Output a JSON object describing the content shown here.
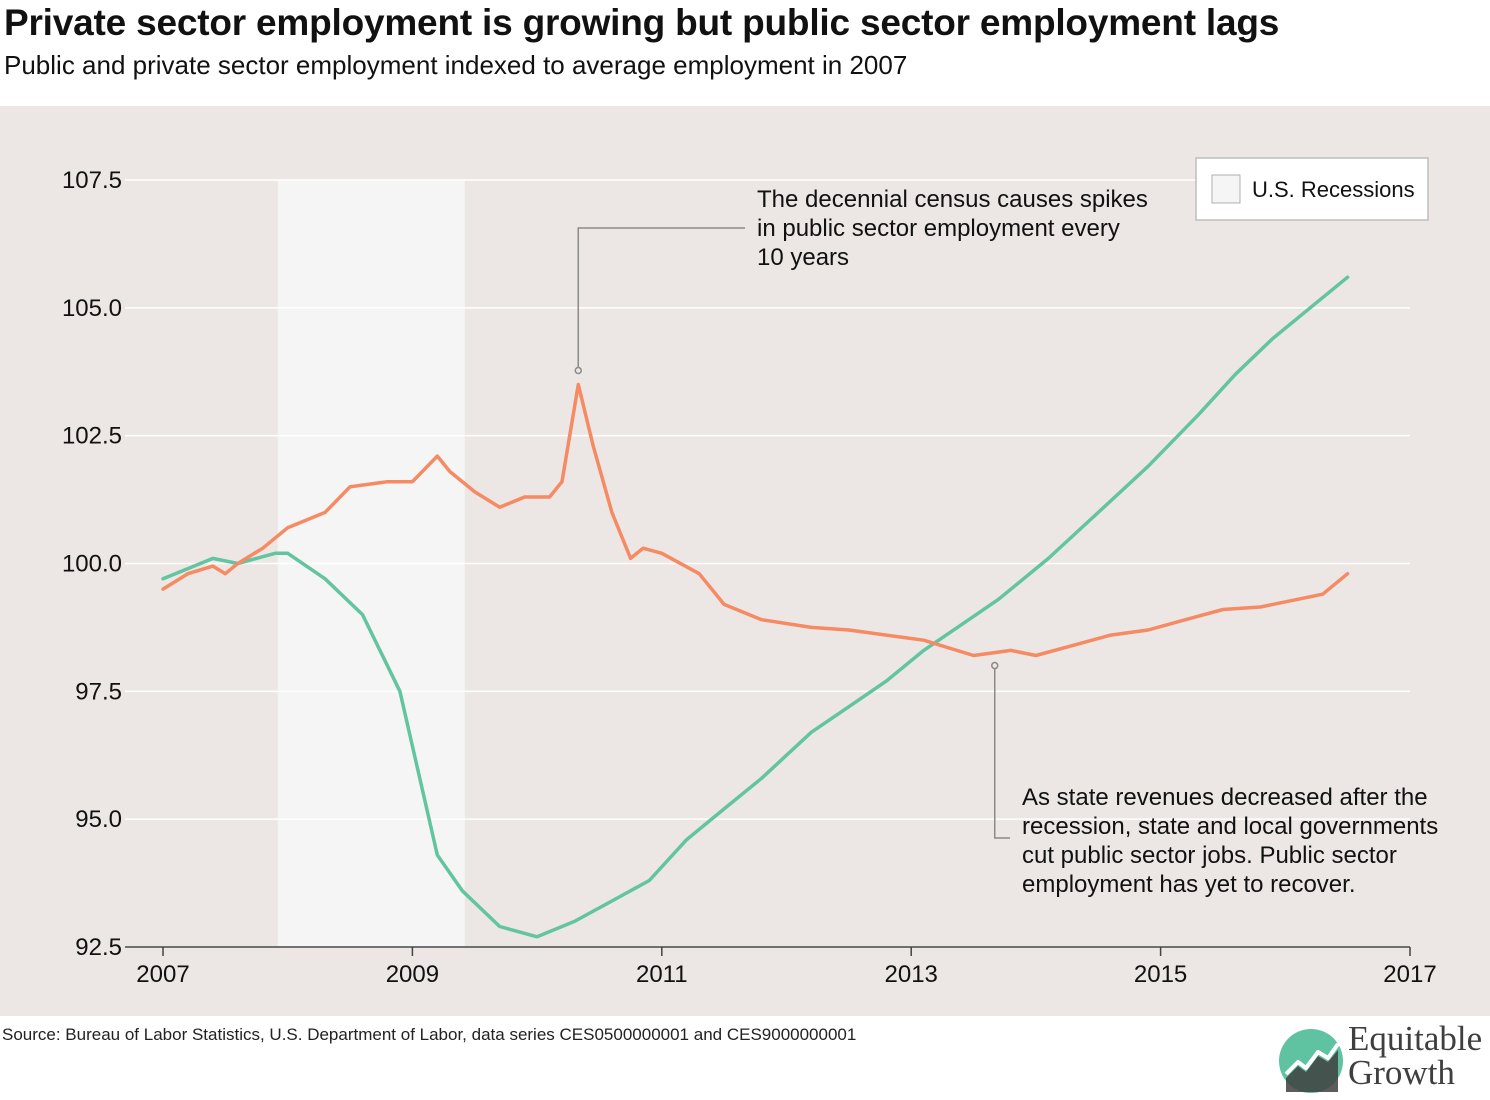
{
  "header": {
    "title": "Private sector employment is growing but public sector employment lags",
    "subtitle": "Public and private sector employment indexed to average employment in 2007"
  },
  "footer": {
    "source": "Source: Bureau of Labor Statistics, U.S. Department of Labor, data series CES0500000001 and CES9000000001"
  },
  "logo": {
    "line1": "Equitable",
    "line2": "Growth",
    "colors": {
      "teal": "#5fc2a0",
      "dark": "#3f3f3f"
    }
  },
  "legend": {
    "label": "U.S. Recessions"
  },
  "annotations": [
    {
      "lines": [
        "The decennial census causes spikes",
        "in public sector employment every",
        "10 years"
      ],
      "points_to": {
        "x": 2010.33,
        "y": 103.5
      }
    },
    {
      "lines": [
        "As state revenues decreased after the",
        "recession, state and local governments",
        "cut public sector jobs. Public sector",
        "employment has yet to recover."
      ],
      "points_to": {
        "x": 2013.67,
        "y": 98.2
      }
    }
  ],
  "colors": {
    "private": "#62c59f",
    "public": "#f58a63",
    "background": "#ece7e5",
    "recession": "#f5f5f5",
    "grid": "#ffffff"
  },
  "chart_data": {
    "type": "line",
    "x_range": [
      2007,
      2017
    ],
    "ylim": [
      92.5,
      107.5
    ],
    "x_ticks": [
      {
        "value": 2007,
        "label": "2007"
      },
      {
        "value": 2009,
        "label": "2009"
      },
      {
        "value": 2011,
        "label": "2011"
      },
      {
        "value": 2013,
        "label": "2013"
      },
      {
        "value": 2015,
        "label": "2015"
      },
      {
        "value": 2017,
        "label": "2017"
      }
    ],
    "y_ticks": [
      {
        "value": 92.5,
        "label": "92.5"
      },
      {
        "value": 95.0,
        "label": "95.0"
      },
      {
        "value": 97.5,
        "label": "97.5"
      },
      {
        "value": 100.0,
        "label": "100.0"
      },
      {
        "value": 102.5,
        "label": "102.5"
      },
      {
        "value": 105.0,
        "label": "105.0"
      },
      {
        "value": 107.5,
        "label": "107.5"
      }
    ],
    "recession": {
      "start": 2007.92,
      "end": 2009.42
    },
    "grid": true,
    "legend_position": "top-right",
    "series": [
      {
        "key": "private",
        "x": [
          2007.0,
          2007.2,
          2007.4,
          2007.6,
          2007.9,
          2008.0,
          2008.3,
          2008.6,
          2008.9,
          2009.2,
          2009.4,
          2009.7,
          2010.0,
          2010.3,
          2010.6,
          2010.9,
          2011.2,
          2011.5,
          2011.8,
          2012.2,
          2012.5,
          2012.8,
          2013.1,
          2013.4,
          2013.7,
          2014.1,
          2014.5,
          2014.9,
          2015.3,
          2015.6,
          2015.9,
          2016.2,
          2016.5
        ],
        "y": [
          99.7,
          99.9,
          100.1,
          100.0,
          100.2,
          100.2,
          99.7,
          99.0,
          97.5,
          94.3,
          93.6,
          92.9,
          92.7,
          93.0,
          93.4,
          93.8,
          94.6,
          95.2,
          95.8,
          96.7,
          97.2,
          97.7,
          98.3,
          98.8,
          99.3,
          100.1,
          101.0,
          101.9,
          102.9,
          103.7,
          104.4,
          105.0,
          105.6
        ]
      },
      {
        "key": "public",
        "x": [
          2007.0,
          2007.2,
          2007.4,
          2007.5,
          2007.6,
          2007.8,
          2008.0,
          2008.3,
          2008.5,
          2008.8,
          2009.0,
          2009.2,
          2009.3,
          2009.5,
          2009.7,
          2009.9,
          2010.1,
          2010.2,
          2010.33,
          2010.45,
          2010.6,
          2010.75,
          2010.85,
          2011.0,
          2011.3,
          2011.5,
          2011.8,
          2012.2,
          2012.5,
          2012.8,
          2013.1,
          2013.5,
          2013.8,
          2014.0,
          2014.3,
          2014.6,
          2014.9,
          2015.2,
          2015.5,
          2015.8,
          2016.1,
          2016.3,
          2016.5
        ],
        "y": [
          99.5,
          99.8,
          99.95,
          99.8,
          100.0,
          100.3,
          100.7,
          101.0,
          101.5,
          101.6,
          101.6,
          102.1,
          101.8,
          101.4,
          101.1,
          101.3,
          101.3,
          101.6,
          103.5,
          102.3,
          101.0,
          100.1,
          100.3,
          100.2,
          99.8,
          99.2,
          98.9,
          98.75,
          98.7,
          98.6,
          98.5,
          98.2,
          98.3,
          98.2,
          98.4,
          98.6,
          98.7,
          98.9,
          99.1,
          99.15,
          99.3,
          99.4,
          99.8
        ]
      }
    ]
  }
}
